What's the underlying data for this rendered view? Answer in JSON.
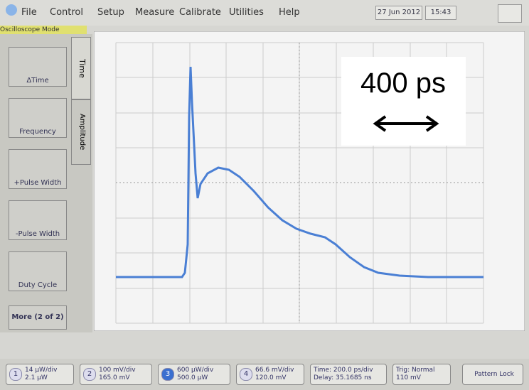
{
  "menu": {
    "items": [
      "File",
      "Control",
      "Setup",
      "Measure",
      "Calibrate",
      "Utilities",
      "Help"
    ],
    "date": "27 Jun 2012",
    "time": "15:43"
  },
  "mode": "Oscilloscope Mode",
  "tabs": [
    "Time",
    "Amplitude"
  ],
  "measurements": [
    "ΔTime",
    "Frequency",
    "+Pulse Width",
    "-Pulse Width",
    "Duty Cycle",
    "More (2 of 2)"
  ],
  "annotation": {
    "text": "400 ps"
  },
  "status": [
    {
      "channel": "1",
      "scale": "14 µW/div",
      "offset": "2.1 µW"
    },
    {
      "channel": "2",
      "scale": "100 mV/div",
      "offset": "165.0 mV"
    },
    {
      "channel": "3",
      "scale": "600 µW/div",
      "offset": "500.0 µW"
    },
    {
      "channel": "4",
      "scale": "66.6 mV/div",
      "offset": "120.0 mV"
    }
  ],
  "timebase": {
    "scale": "Time: 200.0 ps/div",
    "delay": "Delay: 35.1685 ns"
  },
  "trigger": {
    "mode": "Trig: Normal",
    "level": "110 mV"
  },
  "pattern": "Pattern Lock"
}
